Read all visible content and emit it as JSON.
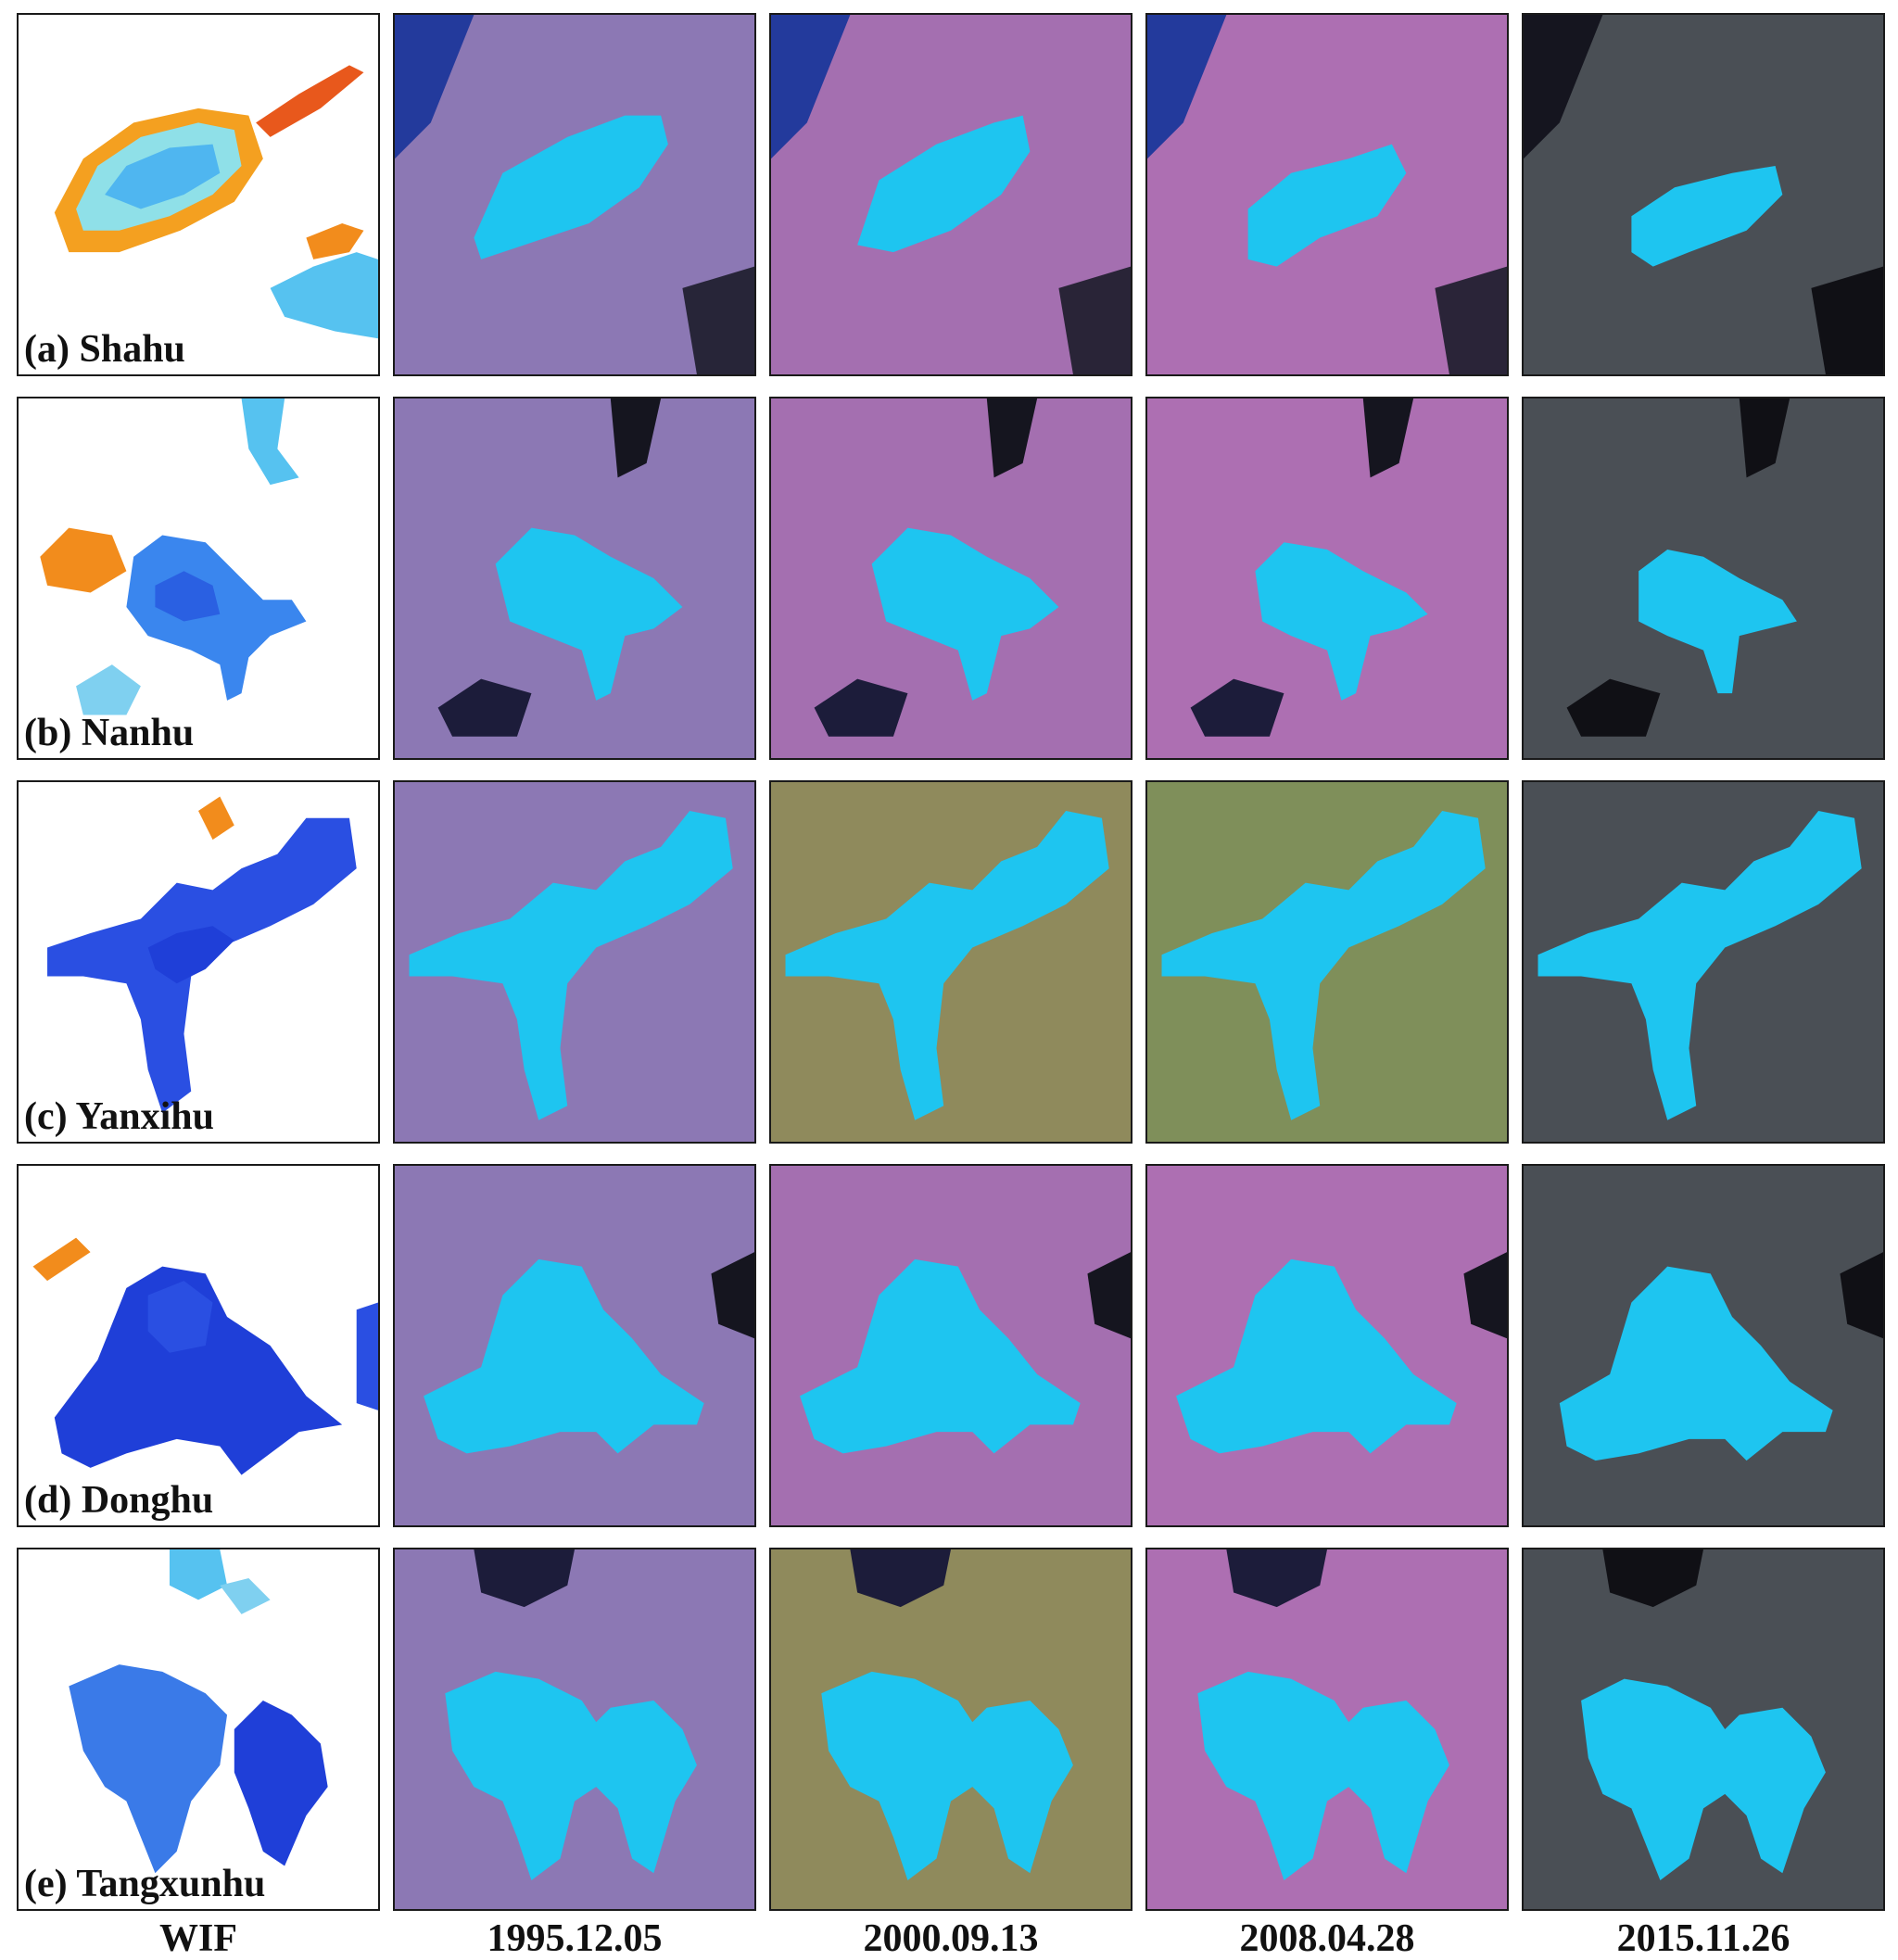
{
  "columns": [
    "WIF",
    "1995.12.05",
    "2000.09.13",
    "2008.04.28",
    "2015.11.26"
  ],
  "rows": [
    {
      "label": "(a) Shahu",
      "lake": "shahu"
    },
    {
      "label": "(b) Nanhu",
      "lake": "nanhu"
    },
    {
      "label": "(c) Yanxihu",
      "lake": "yanxihu"
    },
    {
      "label": "(d) Donghu",
      "lake": "donghu"
    },
    {
      "label": "(e) Tangxunhu",
      "lake": "tangxunhu"
    }
  ],
  "colors": {
    "water_extent": "#1ec5f0",
    "wif_high": "#1f3fd8",
    "wif_mid": "#3fa8f0",
    "wif_low": "#f28c1c",
    "background_1995": "#8c78b4",
    "background_2000": "#a46fb0",
    "background_2008": "#ad6fb2",
    "background_2015": "#4a4f55"
  }
}
